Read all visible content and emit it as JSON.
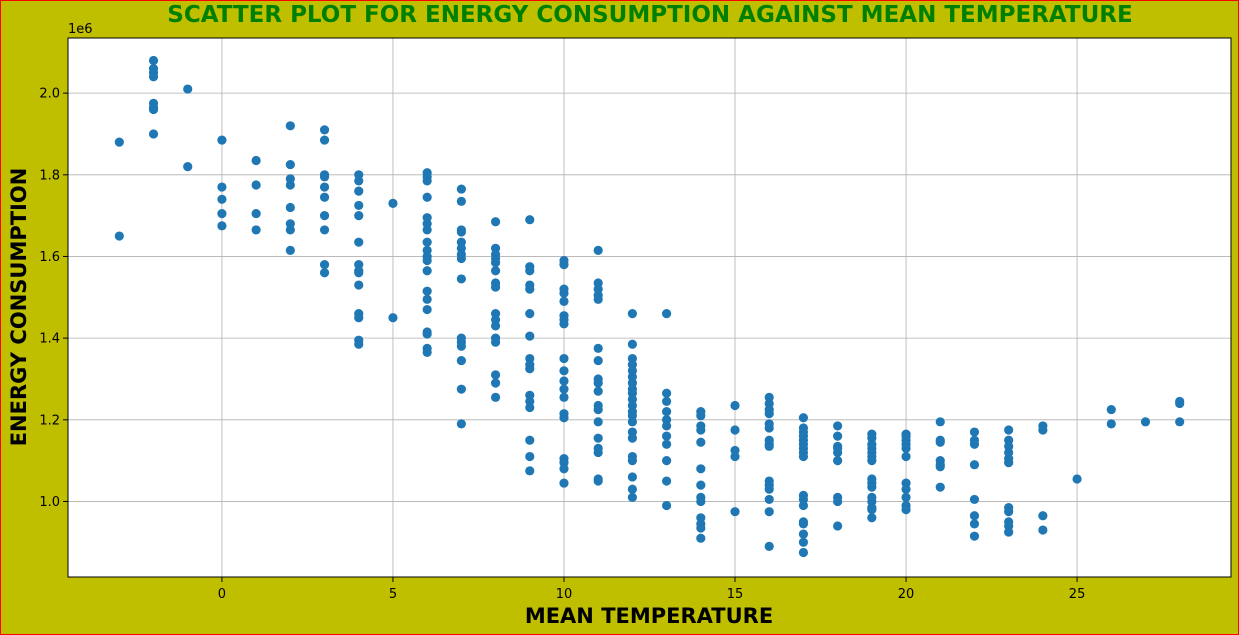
{
  "figure": {
    "background": "#bfbf00",
    "border_color": "#ff0000"
  },
  "chart_data": {
    "type": "scatter",
    "title": "SCATTER PLOT FOR ENERGY CONSUMPTION AGAINST MEAN TEMPERATURE",
    "title_color": "#008000",
    "xlabel": "MEAN TEMPERATURE",
    "ylabel": "ENERGY CONSUMPTION",
    "y_offset_label": "1e6",
    "y_scale_factor": 1000000,
    "xlim": [
      -4.5,
      29.5
    ],
    "ylim": [
      0.815,
      2.135
    ],
    "x_ticks": [
      0,
      5,
      10,
      15,
      20,
      25
    ],
    "y_ticks": [
      1.0,
      1.2,
      1.4,
      1.6,
      1.8,
      2.0
    ],
    "x_tick_labels": [
      "0",
      "5",
      "10",
      "15",
      "20",
      "25"
    ],
    "y_tick_labels": [
      "1.0",
      "1.2",
      "1.4",
      "1.6",
      "1.8",
      "2.0"
    ],
    "grid": true,
    "marker_color": "#1f77b4",
    "series": [
      {
        "points": [
          [
            -3,
            1.88
          ],
          [
            -3,
            1.65
          ],
          [
            -2,
            2.08
          ],
          [
            -2,
            2.06
          ],
          [
            -2,
            2.05
          ],
          [
            -2,
            2.04
          ],
          [
            -2,
            1.975
          ],
          [
            -2,
            1.965
          ],
          [
            -2,
            1.96
          ],
          [
            -2,
            1.9
          ],
          [
            -1,
            2.01
          ],
          [
            -1,
            1.82
          ],
          [
            0,
            1.885
          ],
          [
            0,
            1.77
          ],
          [
            0,
            1.74
          ],
          [
            0,
            1.705
          ],
          [
            0,
            1.675
          ],
          [
            1,
            1.835
          ],
          [
            1,
            1.775
          ],
          [
            1,
            1.705
          ],
          [
            1,
            1.665
          ],
          [
            2,
            1.92
          ],
          [
            2,
            1.825
          ],
          [
            2,
            1.79
          ],
          [
            2,
            1.775
          ],
          [
            2,
            1.72
          ],
          [
            2,
            1.68
          ],
          [
            2,
            1.665
          ],
          [
            2,
            1.615
          ],
          [
            3,
            1.91
          ],
          [
            3,
            1.885
          ],
          [
            3,
            1.8
          ],
          [
            3,
            1.795
          ],
          [
            3,
            1.77
          ],
          [
            3,
            1.745
          ],
          [
            3,
            1.7
          ],
          [
            3,
            1.665
          ],
          [
            3,
            1.58
          ],
          [
            3,
            1.56
          ],
          [
            4,
            1.8
          ],
          [
            4,
            1.785
          ],
          [
            4,
            1.76
          ],
          [
            4,
            1.725
          ],
          [
            4,
            1.7
          ],
          [
            4,
            1.635
          ],
          [
            4,
            1.58
          ],
          [
            4,
            1.565
          ],
          [
            4,
            1.56
          ],
          [
            4,
            1.53
          ],
          [
            4,
            1.46
          ],
          [
            4,
            1.45
          ],
          [
            4,
            1.395
          ],
          [
            4,
            1.385
          ],
          [
            5,
            1.73
          ],
          [
            5,
            1.45
          ],
          [
            6,
            1.805
          ],
          [
            6,
            1.795
          ],
          [
            6,
            1.785
          ],
          [
            6,
            1.745
          ],
          [
            6,
            1.695
          ],
          [
            6,
            1.68
          ],
          [
            6,
            1.665
          ],
          [
            6,
            1.635
          ],
          [
            6,
            1.615
          ],
          [
            6,
            1.6
          ],
          [
            6,
            1.59
          ],
          [
            6,
            1.565
          ],
          [
            6,
            1.515
          ],
          [
            6,
            1.495
          ],
          [
            6,
            1.47
          ],
          [
            6,
            1.415
          ],
          [
            6,
            1.41
          ],
          [
            6,
            1.375
          ],
          [
            6,
            1.365
          ],
          [
            7,
            1.765
          ],
          [
            7,
            1.735
          ],
          [
            7,
            1.665
          ],
          [
            7,
            1.66
          ],
          [
            7,
            1.635
          ],
          [
            7,
            1.62
          ],
          [
            7,
            1.605
          ],
          [
            7,
            1.595
          ],
          [
            7,
            1.545
          ],
          [
            7,
            1.4
          ],
          [
            7,
            1.39
          ],
          [
            7,
            1.38
          ],
          [
            7,
            1.345
          ],
          [
            7,
            1.275
          ],
          [
            7,
            1.19
          ],
          [
            8,
            1.685
          ],
          [
            8,
            1.62
          ],
          [
            8,
            1.605
          ],
          [
            8,
            1.595
          ],
          [
            8,
            1.585
          ],
          [
            8,
            1.565
          ],
          [
            8,
            1.535
          ],
          [
            8,
            1.525
          ],
          [
            8,
            1.46
          ],
          [
            8,
            1.445
          ],
          [
            8,
            1.43
          ],
          [
            8,
            1.4
          ],
          [
            8,
            1.39
          ],
          [
            8,
            1.31
          ],
          [
            8,
            1.29
          ],
          [
            8,
            1.255
          ],
          [
            9,
            1.69
          ],
          [
            9,
            1.575
          ],
          [
            9,
            1.565
          ],
          [
            9,
            1.53
          ],
          [
            9,
            1.52
          ],
          [
            9,
            1.46
          ],
          [
            9,
            1.405
          ],
          [
            9,
            1.35
          ],
          [
            9,
            1.335
          ],
          [
            9,
            1.325
          ],
          [
            9,
            1.26
          ],
          [
            9,
            1.245
          ],
          [
            9,
            1.23
          ],
          [
            9,
            1.15
          ],
          [
            9,
            1.11
          ],
          [
            9,
            1.075
          ],
          [
            10,
            1.59
          ],
          [
            10,
            1.58
          ],
          [
            10,
            1.52
          ],
          [
            10,
            1.51
          ],
          [
            10,
            1.49
          ],
          [
            10,
            1.455
          ],
          [
            10,
            1.445
          ],
          [
            10,
            1.435
          ],
          [
            10,
            1.35
          ],
          [
            10,
            1.32
          ],
          [
            10,
            1.295
          ],
          [
            10,
            1.275
          ],
          [
            10,
            1.255
          ],
          [
            10,
            1.215
          ],
          [
            10,
            1.205
          ],
          [
            10,
            1.105
          ],
          [
            10,
            1.095
          ],
          [
            10,
            1.08
          ],
          [
            10,
            1.045
          ],
          [
            11,
            1.615
          ],
          [
            11,
            1.535
          ],
          [
            11,
            1.52
          ],
          [
            11,
            1.505
          ],
          [
            11,
            1.495
          ],
          [
            11,
            1.375
          ],
          [
            11,
            1.345
          ],
          [
            11,
            1.3
          ],
          [
            11,
            1.29
          ],
          [
            11,
            1.27
          ],
          [
            11,
            1.235
          ],
          [
            11,
            1.225
          ],
          [
            11,
            1.195
          ],
          [
            11,
            1.155
          ],
          [
            11,
            1.13
          ],
          [
            11,
            1.12
          ],
          [
            11,
            1.055
          ],
          [
            11,
            1.05
          ],
          [
            12,
            1.46
          ],
          [
            12,
            1.385
          ],
          [
            12,
            1.35
          ],
          [
            12,
            1.335
          ],
          [
            12,
            1.32
          ],
          [
            12,
            1.305
          ],
          [
            12,
            1.29
          ],
          [
            12,
            1.275
          ],
          [
            12,
            1.265
          ],
          [
            12,
            1.25
          ],
          [
            12,
            1.235
          ],
          [
            12,
            1.22
          ],
          [
            12,
            1.21
          ],
          [
            12,
            1.195
          ],
          [
            12,
            1.17
          ],
          [
            12,
            1.155
          ],
          [
            12,
            1.11
          ],
          [
            12,
            1.1
          ],
          [
            12,
            1.06
          ],
          [
            12,
            1.03
          ],
          [
            12,
            1.01
          ],
          [
            13,
            1.46
          ],
          [
            13,
            1.265
          ],
          [
            13,
            1.245
          ],
          [
            13,
            1.22
          ],
          [
            13,
            1.2
          ],
          [
            13,
            1.185
          ],
          [
            13,
            1.16
          ],
          [
            13,
            1.14
          ],
          [
            13,
            1.1
          ],
          [
            13,
            1.05
          ],
          [
            13,
            0.99
          ],
          [
            14,
            1.22
          ],
          [
            14,
            1.21
          ],
          [
            14,
            1.185
          ],
          [
            14,
            1.175
          ],
          [
            14,
            1.145
          ],
          [
            14,
            1.08
          ],
          [
            14,
            1.04
          ],
          [
            14,
            1.01
          ],
          [
            14,
            1.0
          ],
          [
            14,
            0.96
          ],
          [
            14,
            0.945
          ],
          [
            14,
            0.935
          ],
          [
            14,
            0.91
          ],
          [
            15,
            1.235
          ],
          [
            15,
            1.175
          ],
          [
            15,
            1.125
          ],
          [
            15,
            1.11
          ],
          [
            15,
            0.975
          ],
          [
            16,
            1.255
          ],
          [
            16,
            1.24
          ],
          [
            16,
            1.225
          ],
          [
            16,
            1.215
          ],
          [
            16,
            1.19
          ],
          [
            16,
            1.18
          ],
          [
            16,
            1.15
          ],
          [
            16,
            1.14
          ],
          [
            16,
            1.135
          ],
          [
            16,
            1.05
          ],
          [
            16,
            1.04
          ],
          [
            16,
            1.03
          ],
          [
            16,
            1.005
          ],
          [
            16,
            0.975
          ],
          [
            16,
            0.89
          ],
          [
            17,
            1.205
          ],
          [
            17,
            1.18
          ],
          [
            17,
            1.17
          ],
          [
            17,
            1.16
          ],
          [
            17,
            1.15
          ],
          [
            17,
            1.14
          ],
          [
            17,
            1.13
          ],
          [
            17,
            1.12
          ],
          [
            17,
            1.11
          ],
          [
            17,
            1.015
          ],
          [
            17,
            1.005
          ],
          [
            17,
            0.99
          ],
          [
            17,
            0.95
          ],
          [
            17,
            0.945
          ],
          [
            17,
            0.92
          ],
          [
            17,
            0.9
          ],
          [
            17,
            0.875
          ],
          [
            18,
            1.185
          ],
          [
            18,
            1.16
          ],
          [
            18,
            1.135
          ],
          [
            18,
            1.13
          ],
          [
            18,
            1.12
          ],
          [
            18,
            1.1
          ],
          [
            18,
            1.01
          ],
          [
            18,
            1.0
          ],
          [
            18,
            0.94
          ],
          [
            19,
            1.165
          ],
          [
            19,
            1.155
          ],
          [
            19,
            1.14
          ],
          [
            19,
            1.13
          ],
          [
            19,
            1.12
          ],
          [
            19,
            1.11
          ],
          [
            19,
            1.1
          ],
          [
            19,
            1.055
          ],
          [
            19,
            1.045
          ],
          [
            19,
            1.035
          ],
          [
            19,
            1.01
          ],
          [
            19,
            1.0
          ],
          [
            19,
            0.985
          ],
          [
            19,
            0.98
          ],
          [
            19,
            0.96
          ],
          [
            20,
            1.165
          ],
          [
            20,
            1.16
          ],
          [
            20,
            1.15
          ],
          [
            20,
            1.14
          ],
          [
            20,
            1.13
          ],
          [
            20,
            1.11
          ],
          [
            20,
            1.045
          ],
          [
            20,
            1.03
          ],
          [
            20,
            1.01
          ],
          [
            20,
            0.99
          ],
          [
            20,
            0.98
          ],
          [
            21,
            1.195
          ],
          [
            21,
            1.15
          ],
          [
            21,
            1.145
          ],
          [
            21,
            1.1
          ],
          [
            21,
            1.09
          ],
          [
            21,
            1.085
          ],
          [
            21,
            1.035
          ],
          [
            22,
            1.17
          ],
          [
            22,
            1.15
          ],
          [
            22,
            1.14
          ],
          [
            22,
            1.09
          ],
          [
            22,
            1.005
          ],
          [
            22,
            0.965
          ],
          [
            22,
            0.945
          ],
          [
            22,
            0.915
          ],
          [
            23,
            1.175
          ],
          [
            23,
            1.15
          ],
          [
            23,
            1.135
          ],
          [
            23,
            1.12
          ],
          [
            23,
            1.105
          ],
          [
            23,
            1.095
          ],
          [
            23,
            0.985
          ],
          [
            23,
            0.975
          ],
          [
            23,
            0.95
          ],
          [
            23,
            0.94
          ],
          [
            23,
            0.925
          ],
          [
            24,
            1.185
          ],
          [
            24,
            1.175
          ],
          [
            24,
            0.965
          ],
          [
            24,
            0.93
          ],
          [
            25,
            1.055
          ],
          [
            26,
            1.225
          ],
          [
            26,
            1.19
          ],
          [
            27,
            1.195
          ],
          [
            28,
            1.245
          ],
          [
            28,
            1.24
          ],
          [
            28,
            1.195
          ]
        ]
      }
    ]
  }
}
